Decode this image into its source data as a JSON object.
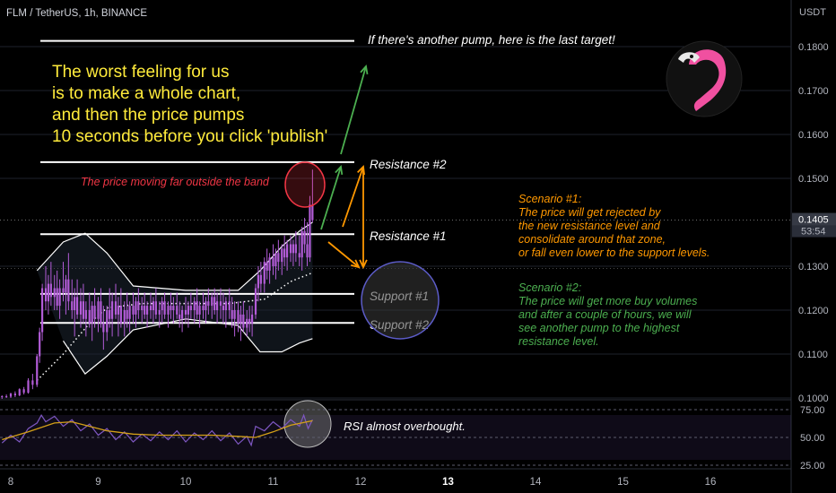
{
  "header": {
    "symbol_title": "FLM / TetherUS, 1h, BINANCE"
  },
  "price_axis": {
    "currency": "USDT",
    "ticks": [
      "0.1800",
      "0.1700",
      "0.1600",
      "0.1500",
      "0.1300",
      "0.1200",
      "0.1100",
      "0.1000"
    ],
    "tick_values": [
      0.18,
      0.17,
      0.16,
      0.15,
      0.13,
      0.12,
      0.11,
      0.1
    ],
    "last_price": "0.1405",
    "countdown": "53:54",
    "last_price_value": 0.1405
  },
  "time_axis": {
    "labels": [
      "8",
      "9",
      "10",
      "11",
      "12",
      "13",
      "14",
      "15",
      "16"
    ],
    "bold_label": "13"
  },
  "rsi_axis": {
    "ticks": [
      "75.00",
      "50.00",
      "25.00"
    ],
    "tick_values": [
      75,
      50,
      25
    ]
  },
  "annotations": {
    "headline": [
      "The worst feeling for us",
      "is to make a whole chart,",
      "and then the price pumps",
      "10 seconds before you click 'publish'"
    ],
    "last_target": "If there's another pump, here is the last target!",
    "band_note": "The price moving far outside the band",
    "scenario1": [
      "Scenario #1:",
      "The price will get rejected by",
      "the new resistance level and",
      "consolidate around that zone,",
      "or fall even lower to the support levels."
    ],
    "scenario2": [
      "Scenario #2:",
      "The price will get more buy volumes",
      "and after a couple of hours, we will",
      "see another pump to the highest",
      "resistance level."
    ],
    "rsi_note": "RSI almost overbought."
  },
  "levels": [
    {
      "label": "",
      "price": 0.1813
    },
    {
      "label": "Resistance #2",
      "price": 0.1537
    },
    {
      "label": "Resistance #1",
      "price": 0.1373
    },
    {
      "label": "Support #1",
      "price": 0.1237
    },
    {
      "label": "Support #2",
      "price": 0.1171
    }
  ],
  "colors": {
    "headline": "#ffeb3b",
    "band_note": "#f23645",
    "scenario1": "#ff9800",
    "scenario2": "#4caf50",
    "candle": "#b35cd8",
    "rsi": "#7e57c2",
    "rsi_ma": "#d4a017",
    "logo": "#f050a0"
  },
  "chart_data": {
    "type": "candlestick",
    "ylim": [
      0.1,
      0.188
    ],
    "rsi_ylim": [
      17,
      83
    ],
    "bollinger_upper": [
      [
        8.3,
        0.129
      ],
      [
        8.6,
        0.1355
      ],
      [
        8.85,
        0.1375
      ],
      [
        9.1,
        0.133
      ],
      [
        9.4,
        0.1255
      ],
      [
        10.0,
        0.1245
      ],
      [
        10.6,
        0.1245
      ],
      [
        10.85,
        0.129
      ],
      [
        11.1,
        0.1345
      ],
      [
        11.3,
        0.138
      ],
      [
        11.45,
        0.14
      ]
    ],
    "bollinger_lower": [
      [
        8.6,
        0.113
      ],
      [
        8.85,
        0.1055
      ],
      [
        9.1,
        0.1095
      ],
      [
        9.4,
        0.1155
      ],
      [
        10.0,
        0.118
      ],
      [
        10.6,
        0.1165
      ],
      [
        10.85,
        0.1105
      ],
      [
        11.1,
        0.1105
      ],
      [
        11.3,
        0.1125
      ],
      [
        11.45,
        0.1135
      ]
    ],
    "moving_average": [
      [
        8.3,
        0.104
      ],
      [
        8.6,
        0.11
      ],
      [
        8.9,
        0.117
      ],
      [
        9.1,
        0.1205
      ],
      [
        9.5,
        0.1215
      ],
      [
        10.5,
        0.1215
      ],
      [
        10.9,
        0.1225
      ],
      [
        11.2,
        0.1265
      ],
      [
        11.45,
        0.1285
      ]
    ],
    "candles": [
      [
        7.9,
        0.1002,
        0.1006,
        0.0998,
        0.1004
      ],
      [
        7.95,
        0.1004,
        0.1008,
        0.1,
        0.1003
      ],
      [
        8.0,
        0.1003,
        0.1012,
        0.1,
        0.101
      ],
      [
        8.05,
        0.101,
        0.1015,
        0.1002,
        0.1006
      ],
      [
        8.1,
        0.1006,
        0.1022,
        0.1004,
        0.102
      ],
      [
        8.15,
        0.102,
        0.1025,
        0.1008,
        0.1012
      ],
      [
        8.2,
        0.1012,
        0.1045,
        0.101,
        0.104
      ],
      [
        8.25,
        0.104,
        0.1055,
        0.102,
        0.103
      ],
      [
        8.3,
        0.103,
        0.11,
        0.1025,
        0.1095
      ],
      [
        8.33,
        0.1095,
        0.116,
        0.108,
        0.115
      ],
      [
        8.36,
        0.115,
        0.126,
        0.113,
        0.125
      ],
      [
        8.4,
        0.125,
        0.13,
        0.12,
        0.122
      ],
      [
        8.43,
        0.122,
        0.128,
        0.119,
        0.126
      ],
      [
        8.46,
        0.126,
        0.131,
        0.121,
        0.123
      ],
      [
        8.5,
        0.123,
        0.128,
        0.12,
        0.125
      ],
      [
        8.53,
        0.125,
        0.129,
        0.12,
        0.121
      ],
      [
        8.56,
        0.121,
        0.127,
        0.118,
        0.125
      ],
      [
        8.6,
        0.125,
        0.131,
        0.122,
        0.124
      ],
      [
        8.63,
        0.124,
        0.128,
        0.119,
        0.127
      ],
      [
        8.66,
        0.127,
        0.133,
        0.12,
        0.122
      ],
      [
        8.7,
        0.122,
        0.127,
        0.118,
        0.12
      ],
      [
        8.73,
        0.12,
        0.125,
        0.114,
        0.123
      ],
      [
        8.76,
        0.123,
        0.127,
        0.118,
        0.119
      ],
      [
        8.8,
        0.119,
        0.125,
        0.116,
        0.122
      ],
      [
        8.83,
        0.122,
        0.126,
        0.117,
        0.118
      ],
      [
        8.86,
        0.118,
        0.122,
        0.114,
        0.12
      ],
      [
        8.9,
        0.12,
        0.124,
        0.116,
        0.117
      ],
      [
        8.93,
        0.117,
        0.122,
        0.113,
        0.121
      ],
      [
        8.96,
        0.121,
        0.125,
        0.116,
        0.118
      ],
      [
        9.0,
        0.118,
        0.123,
        0.115,
        0.122
      ],
      [
        9.03,
        0.122,
        0.125,
        0.116,
        0.117
      ],
      [
        9.06,
        0.117,
        0.121,
        0.111,
        0.115
      ],
      [
        9.1,
        0.115,
        0.121,
        0.113,
        0.12
      ],
      [
        9.13,
        0.12,
        0.125,
        0.116,
        0.118
      ],
      [
        9.16,
        0.118,
        0.124,
        0.114,
        0.122
      ],
      [
        9.2,
        0.122,
        0.126,
        0.118,
        0.119
      ],
      [
        9.23,
        0.119,
        0.123,
        0.114,
        0.121
      ],
      [
        9.26,
        0.121,
        0.125,
        0.116,
        0.117
      ],
      [
        9.3,
        0.117,
        0.122,
        0.114,
        0.12
      ],
      [
        9.33,
        0.12,
        0.124,
        0.116,
        0.118
      ],
      [
        9.36,
        0.118,
        0.122,
        0.115,
        0.121
      ],
      [
        9.4,
        0.121,
        0.124,
        0.117,
        0.119
      ],
      [
        9.43,
        0.119,
        0.123,
        0.116,
        0.122
      ],
      [
        9.46,
        0.122,
        0.125,
        0.118,
        0.12
      ],
      [
        9.5,
        0.12,
        0.123,
        0.117,
        0.121
      ],
      [
        9.53,
        0.121,
        0.124,
        0.118,
        0.119
      ],
      [
        9.56,
        0.119,
        0.122,
        0.116,
        0.121
      ],
      [
        9.6,
        0.121,
        0.124,
        0.118,
        0.12
      ],
      [
        9.63,
        0.12,
        0.123,
        0.117,
        0.122
      ],
      [
        9.66,
        0.122,
        0.125,
        0.118,
        0.119
      ],
      [
        9.7,
        0.119,
        0.122,
        0.116,
        0.12
      ],
      [
        9.73,
        0.12,
        0.123,
        0.117,
        0.122
      ],
      [
        9.76,
        0.122,
        0.124,
        0.118,
        0.119
      ],
      [
        9.8,
        0.119,
        0.122,
        0.116,
        0.121
      ],
      [
        9.83,
        0.121,
        0.124,
        0.118,
        0.12
      ],
      [
        9.86,
        0.12,
        0.123,
        0.117,
        0.121
      ],
      [
        9.9,
        0.121,
        0.124,
        0.118,
        0.119
      ],
      [
        9.93,
        0.119,
        0.122,
        0.116,
        0.118
      ],
      [
        9.96,
        0.118,
        0.121,
        0.115,
        0.12
      ],
      [
        10.0,
        0.12,
        0.123,
        0.117,
        0.119
      ],
      [
        10.03,
        0.119,
        0.122,
        0.116,
        0.121
      ],
      [
        10.06,
        0.121,
        0.124,
        0.118,
        0.12
      ],
      [
        10.1,
        0.12,
        0.123,
        0.117,
        0.122
      ],
      [
        10.13,
        0.122,
        0.125,
        0.118,
        0.119
      ],
      [
        10.16,
        0.119,
        0.122,
        0.116,
        0.121
      ],
      [
        10.2,
        0.121,
        0.124,
        0.118,
        0.12
      ],
      [
        10.23,
        0.12,
        0.123,
        0.117,
        0.122
      ],
      [
        10.26,
        0.122,
        0.125,
        0.119,
        0.121
      ],
      [
        10.3,
        0.121,
        0.124,
        0.118,
        0.123
      ],
      [
        10.33,
        0.123,
        0.125,
        0.119,
        0.12
      ],
      [
        10.36,
        0.12,
        0.124,
        0.117,
        0.122
      ],
      [
        10.4,
        0.122,
        0.125,
        0.118,
        0.121
      ],
      [
        10.43,
        0.121,
        0.124,
        0.117,
        0.12
      ],
      [
        10.46,
        0.12,
        0.123,
        0.116,
        0.122
      ],
      [
        10.5,
        0.122,
        0.125,
        0.118,
        0.12
      ],
      [
        10.53,
        0.12,
        0.123,
        0.116,
        0.118
      ],
      [
        10.56,
        0.118,
        0.122,
        0.114,
        0.12
      ],
      [
        10.6,
        0.12,
        0.122,
        0.115,
        0.117
      ],
      [
        10.63,
        0.117,
        0.121,
        0.113,
        0.119
      ],
      [
        10.66,
        0.119,
        0.122,
        0.115,
        0.116
      ],
      [
        10.7,
        0.116,
        0.12,
        0.114,
        0.118
      ],
      [
        10.73,
        0.118,
        0.121,
        0.115,
        0.117
      ],
      [
        10.76,
        0.117,
        0.121,
        0.114,
        0.119
      ],
      [
        10.8,
        0.119,
        0.126,
        0.118,
        0.125
      ],
      [
        10.83,
        0.125,
        0.13,
        0.122,
        0.128
      ],
      [
        10.86,
        0.128,
        0.131,
        0.124,
        0.126
      ],
      [
        10.9,
        0.126,
        0.132,
        0.124,
        0.131
      ],
      [
        10.93,
        0.131,
        0.134,
        0.127,
        0.129
      ],
      [
        10.96,
        0.129,
        0.133,
        0.126,
        0.132
      ],
      [
        11.0,
        0.132,
        0.135,
        0.128,
        0.13
      ],
      [
        11.03,
        0.13,
        0.134,
        0.127,
        0.133
      ],
      [
        11.06,
        0.133,
        0.136,
        0.129,
        0.131
      ],
      [
        11.1,
        0.131,
        0.135,
        0.128,
        0.134
      ],
      [
        11.13,
        0.134,
        0.137,
        0.13,
        0.132
      ],
      [
        11.16,
        0.132,
        0.136,
        0.129,
        0.135
      ],
      [
        11.2,
        0.135,
        0.137,
        0.131,
        0.133
      ],
      [
        11.23,
        0.133,
        0.136,
        0.13,
        0.135
      ],
      [
        11.26,
        0.135,
        0.138,
        0.131,
        0.133
      ],
      [
        11.3,
        0.133,
        0.137,
        0.13,
        0.132
      ],
      [
        11.33,
        0.132,
        0.139,
        0.129,
        0.138
      ],
      [
        11.36,
        0.138,
        0.141,
        0.133,
        0.135
      ],
      [
        11.39,
        0.135,
        0.14,
        0.13,
        0.132
      ],
      [
        11.42,
        0.132,
        0.146,
        0.131,
        0.144
      ],
      [
        11.45,
        0.144,
        0.152,
        0.14,
        0.1405
      ]
    ],
    "rsi": [
      [
        7.9,
        45
      ],
      [
        8.0,
        52
      ],
      [
        8.1,
        46
      ],
      [
        8.2,
        58
      ],
      [
        8.3,
        63
      ],
      [
        8.35,
        70
      ],
      [
        8.4,
        64
      ],
      [
        8.5,
        69
      ],
      [
        8.6,
        60
      ],
      [
        8.7,
        66
      ],
      [
        8.8,
        56
      ],
      [
        8.9,
        62
      ],
      [
        9.0,
        52
      ],
      [
        9.1,
        58
      ],
      [
        9.2,
        48
      ],
      [
        9.3,
        55
      ],
      [
        9.4,
        46
      ],
      [
        9.5,
        53
      ],
      [
        9.6,
        47
      ],
      [
        9.7,
        55
      ],
      [
        9.8,
        48
      ],
      [
        9.9,
        56
      ],
      [
        10.0,
        46
      ],
      [
        10.1,
        54
      ],
      [
        10.2,
        48
      ],
      [
        10.3,
        56
      ],
      [
        10.4,
        47
      ],
      [
        10.5,
        54
      ],
      [
        10.6,
        44
      ],
      [
        10.7,
        51
      ],
      [
        10.75,
        43
      ],
      [
        10.8,
        60
      ],
      [
        10.9,
        56
      ],
      [
        11.0,
        64
      ],
      [
        11.1,
        58
      ],
      [
        11.2,
        66
      ],
      [
        11.3,
        60
      ],
      [
        11.35,
        70
      ],
      [
        11.4,
        58
      ],
      [
        11.45,
        66
      ]
    ],
    "rsi_ma": [
      [
        7.9,
        48
      ],
      [
        8.2,
        55
      ],
      [
        8.5,
        63
      ],
      [
        8.7,
        64
      ],
      [
        8.9,
        60
      ],
      [
        9.1,
        56
      ],
      [
        9.4,
        53
      ],
      [
        9.7,
        52
      ],
      [
        10.0,
        52
      ],
      [
        10.3,
        52
      ],
      [
        10.6,
        51
      ],
      [
        10.8,
        50
      ],
      [
        11.0,
        55
      ],
      [
        11.2,
        61
      ],
      [
        11.45,
        65
      ]
    ]
  }
}
